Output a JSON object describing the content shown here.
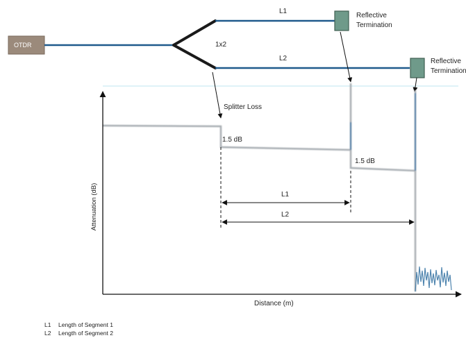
{
  "otdr": {
    "label": "OTDR"
  },
  "splitter": {
    "label": "1x2"
  },
  "fibers": [
    {
      "id": "l1",
      "label": "L1"
    },
    {
      "id": "l2",
      "label": "L2"
    }
  ],
  "terminations": [
    {
      "id": "t1",
      "line1": "Reflective",
      "line2": "Termination"
    },
    {
      "id": "t2",
      "line1": "Reflective",
      "line2": "Termination"
    }
  ],
  "trace": {
    "splitter_loss_label": "Splitter Loss",
    "step1_label": "1.5 dB",
    "step2_label": "1.5 dB",
    "span_l1_label": "L1",
    "span_l2_label": "L2",
    "y_axis_label": "Attenuation (dB)",
    "x_axis_label": "Distance (m)"
  },
  "legend": [
    {
      "key": "L1",
      "text": "Length of Segment 1"
    },
    {
      "key": "L2",
      "text": "Length of Segment 2"
    }
  ],
  "colors": {
    "fiber": "#1f5a8c",
    "splitter": "#1a1a1a",
    "otdr_box": "#9b8a7b",
    "termination_box": "#6f9a8a",
    "trace": "#a7adb2",
    "trace_reflection": "#2f6ea0",
    "noise": "#2f6ea0",
    "axis": "#111111",
    "top_line": "#bfe4f0"
  }
}
